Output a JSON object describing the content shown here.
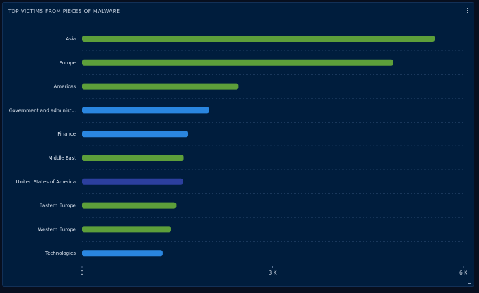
{
  "panel": {
    "title": "TOP VICTIMS FROM PIECES OF MALWARE"
  },
  "icons": {
    "menu": "vertical-ellipsis-icon",
    "resize": "resize-corner-icon"
  },
  "colors": {
    "background": "#001d3d",
    "region_bar": "#5d9f3a",
    "sector_bar": "#2a86e0",
    "country_bar": "#2c3f9e",
    "gridline": "#2b4a70"
  },
  "chart_data": {
    "type": "bar",
    "orientation": "horizontal",
    "title": "TOP VICTIMS FROM PIECES OF MALWARE",
    "categories": [
      "Asia",
      "Europe",
      "Americas",
      "Government and administ...",
      "Finance",
      "Middle East",
      "United States of America",
      "Eastern Europe",
      "Western Europe",
      "Technologies"
    ],
    "values": [
      5550,
      4900,
      2460,
      2000,
      1670,
      1600,
      1590,
      1480,
      1400,
      1270
    ],
    "bar_colors": [
      "#5d9f3a",
      "#5d9f3a",
      "#5d9f3a",
      "#2a86e0",
      "#2a86e0",
      "#5d9f3a",
      "#2c3f9e",
      "#5d9f3a",
      "#5d9f3a",
      "#2a86e0"
    ],
    "xlim": [
      0,
      6000
    ],
    "xticks": [
      0,
      3000,
      6000
    ],
    "xtick_labels": [
      "0",
      "3 K",
      "6 K"
    ],
    "xlabel": "",
    "ylabel": "",
    "grid": true,
    "legend": "none"
  }
}
